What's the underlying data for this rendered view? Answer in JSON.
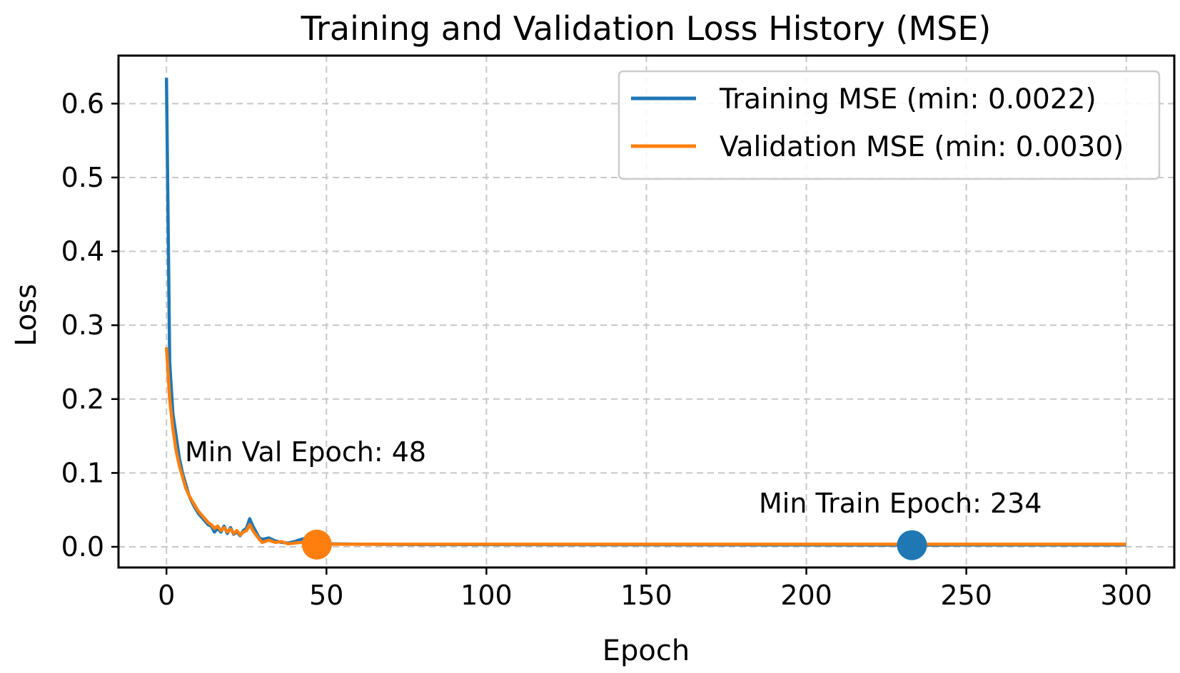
{
  "chart_data": {
    "type": "line",
    "title": "Training and Validation Loss History (MSE)",
    "xlabel": "Epoch",
    "ylabel": "Loss",
    "xlim": [
      -15,
      315
    ],
    "ylim": [
      -0.028,
      0.665
    ],
    "xticks": [
      0,
      50,
      100,
      150,
      200,
      250,
      300
    ],
    "xtick_labels": [
      "0",
      "50",
      "100",
      "150",
      "200",
      "250",
      "300"
    ],
    "yticks": [
      0.0,
      0.1,
      0.2,
      0.3,
      0.4,
      0.5,
      0.6
    ],
    "ytick_labels": [
      "0.0",
      "0.1",
      "0.2",
      "0.3",
      "0.4",
      "0.5",
      "0.6"
    ],
    "grid": true,
    "legend_position": "upper-right",
    "series": [
      {
        "name": "Training MSE (min: 0.0022)",
        "color": "#1f77b4",
        "x": [
          0,
          1,
          2,
          3,
          4,
          5,
          6,
          7,
          8,
          9,
          10,
          11,
          12,
          13,
          14,
          15,
          16,
          17,
          18,
          19,
          20,
          21,
          22,
          23,
          24,
          25,
          26,
          27,
          28,
          29,
          30,
          32,
          34,
          36,
          38,
          40,
          42,
          44,
          46,
          48,
          50,
          60,
          80,
          100,
          150,
          200,
          234,
          250,
          300
        ],
        "y": [
          0.635,
          0.25,
          0.18,
          0.15,
          0.12,
          0.1,
          0.085,
          0.07,
          0.06,
          0.052,
          0.045,
          0.04,
          0.035,
          0.03,
          0.028,
          0.02,
          0.025,
          0.02,
          0.028,
          0.018,
          0.026,
          0.017,
          0.02,
          0.015,
          0.022,
          0.025,
          0.038,
          0.028,
          0.02,
          0.012,
          0.01,
          0.012,
          0.008,
          0.006,
          0.005,
          0.007,
          0.01,
          0.012,
          0.009,
          0.005,
          0.004,
          0.0035,
          0.003,
          0.003,
          0.0028,
          0.0025,
          0.0022,
          0.0025,
          0.0025
        ]
      },
      {
        "name": "Validation MSE (min: 0.0030)",
        "color": "#ff7f0e",
        "x": [
          0,
          1,
          2,
          3,
          4,
          5,
          6,
          7,
          8,
          9,
          10,
          11,
          12,
          13,
          14,
          15,
          16,
          17,
          18,
          19,
          20,
          21,
          22,
          23,
          24,
          25,
          26,
          27,
          28,
          29,
          30,
          32,
          34,
          36,
          38,
          40,
          42,
          44,
          46,
          48,
          50,
          60,
          80,
          100,
          150,
          200,
          250,
          300
        ],
        "y": [
          0.27,
          0.2,
          0.16,
          0.13,
          0.11,
          0.095,
          0.08,
          0.07,
          0.062,
          0.055,
          0.048,
          0.043,
          0.038,
          0.033,
          0.03,
          0.025,
          0.028,
          0.022,
          0.026,
          0.02,
          0.024,
          0.018,
          0.022,
          0.016,
          0.02,
          0.022,
          0.03,
          0.022,
          0.016,
          0.01,
          0.006,
          0.009,
          0.006,
          0.007,
          0.004,
          0.005,
          0.006,
          0.005,
          0.004,
          0.003,
          0.0035,
          0.0035,
          0.0035,
          0.0035,
          0.0035,
          0.0035,
          0.0035,
          0.0035
        ]
      }
    ],
    "markers": [
      {
        "name": "min-val",
        "x": 47,
        "y": 0.003,
        "color": "#ff7f0e",
        "label": "Min Val Epoch: 48"
      },
      {
        "name": "min-train",
        "x": 233,
        "y": 0.0022,
        "color": "#1f77b4",
        "label": "Min Train Epoch: 234"
      }
    ]
  }
}
